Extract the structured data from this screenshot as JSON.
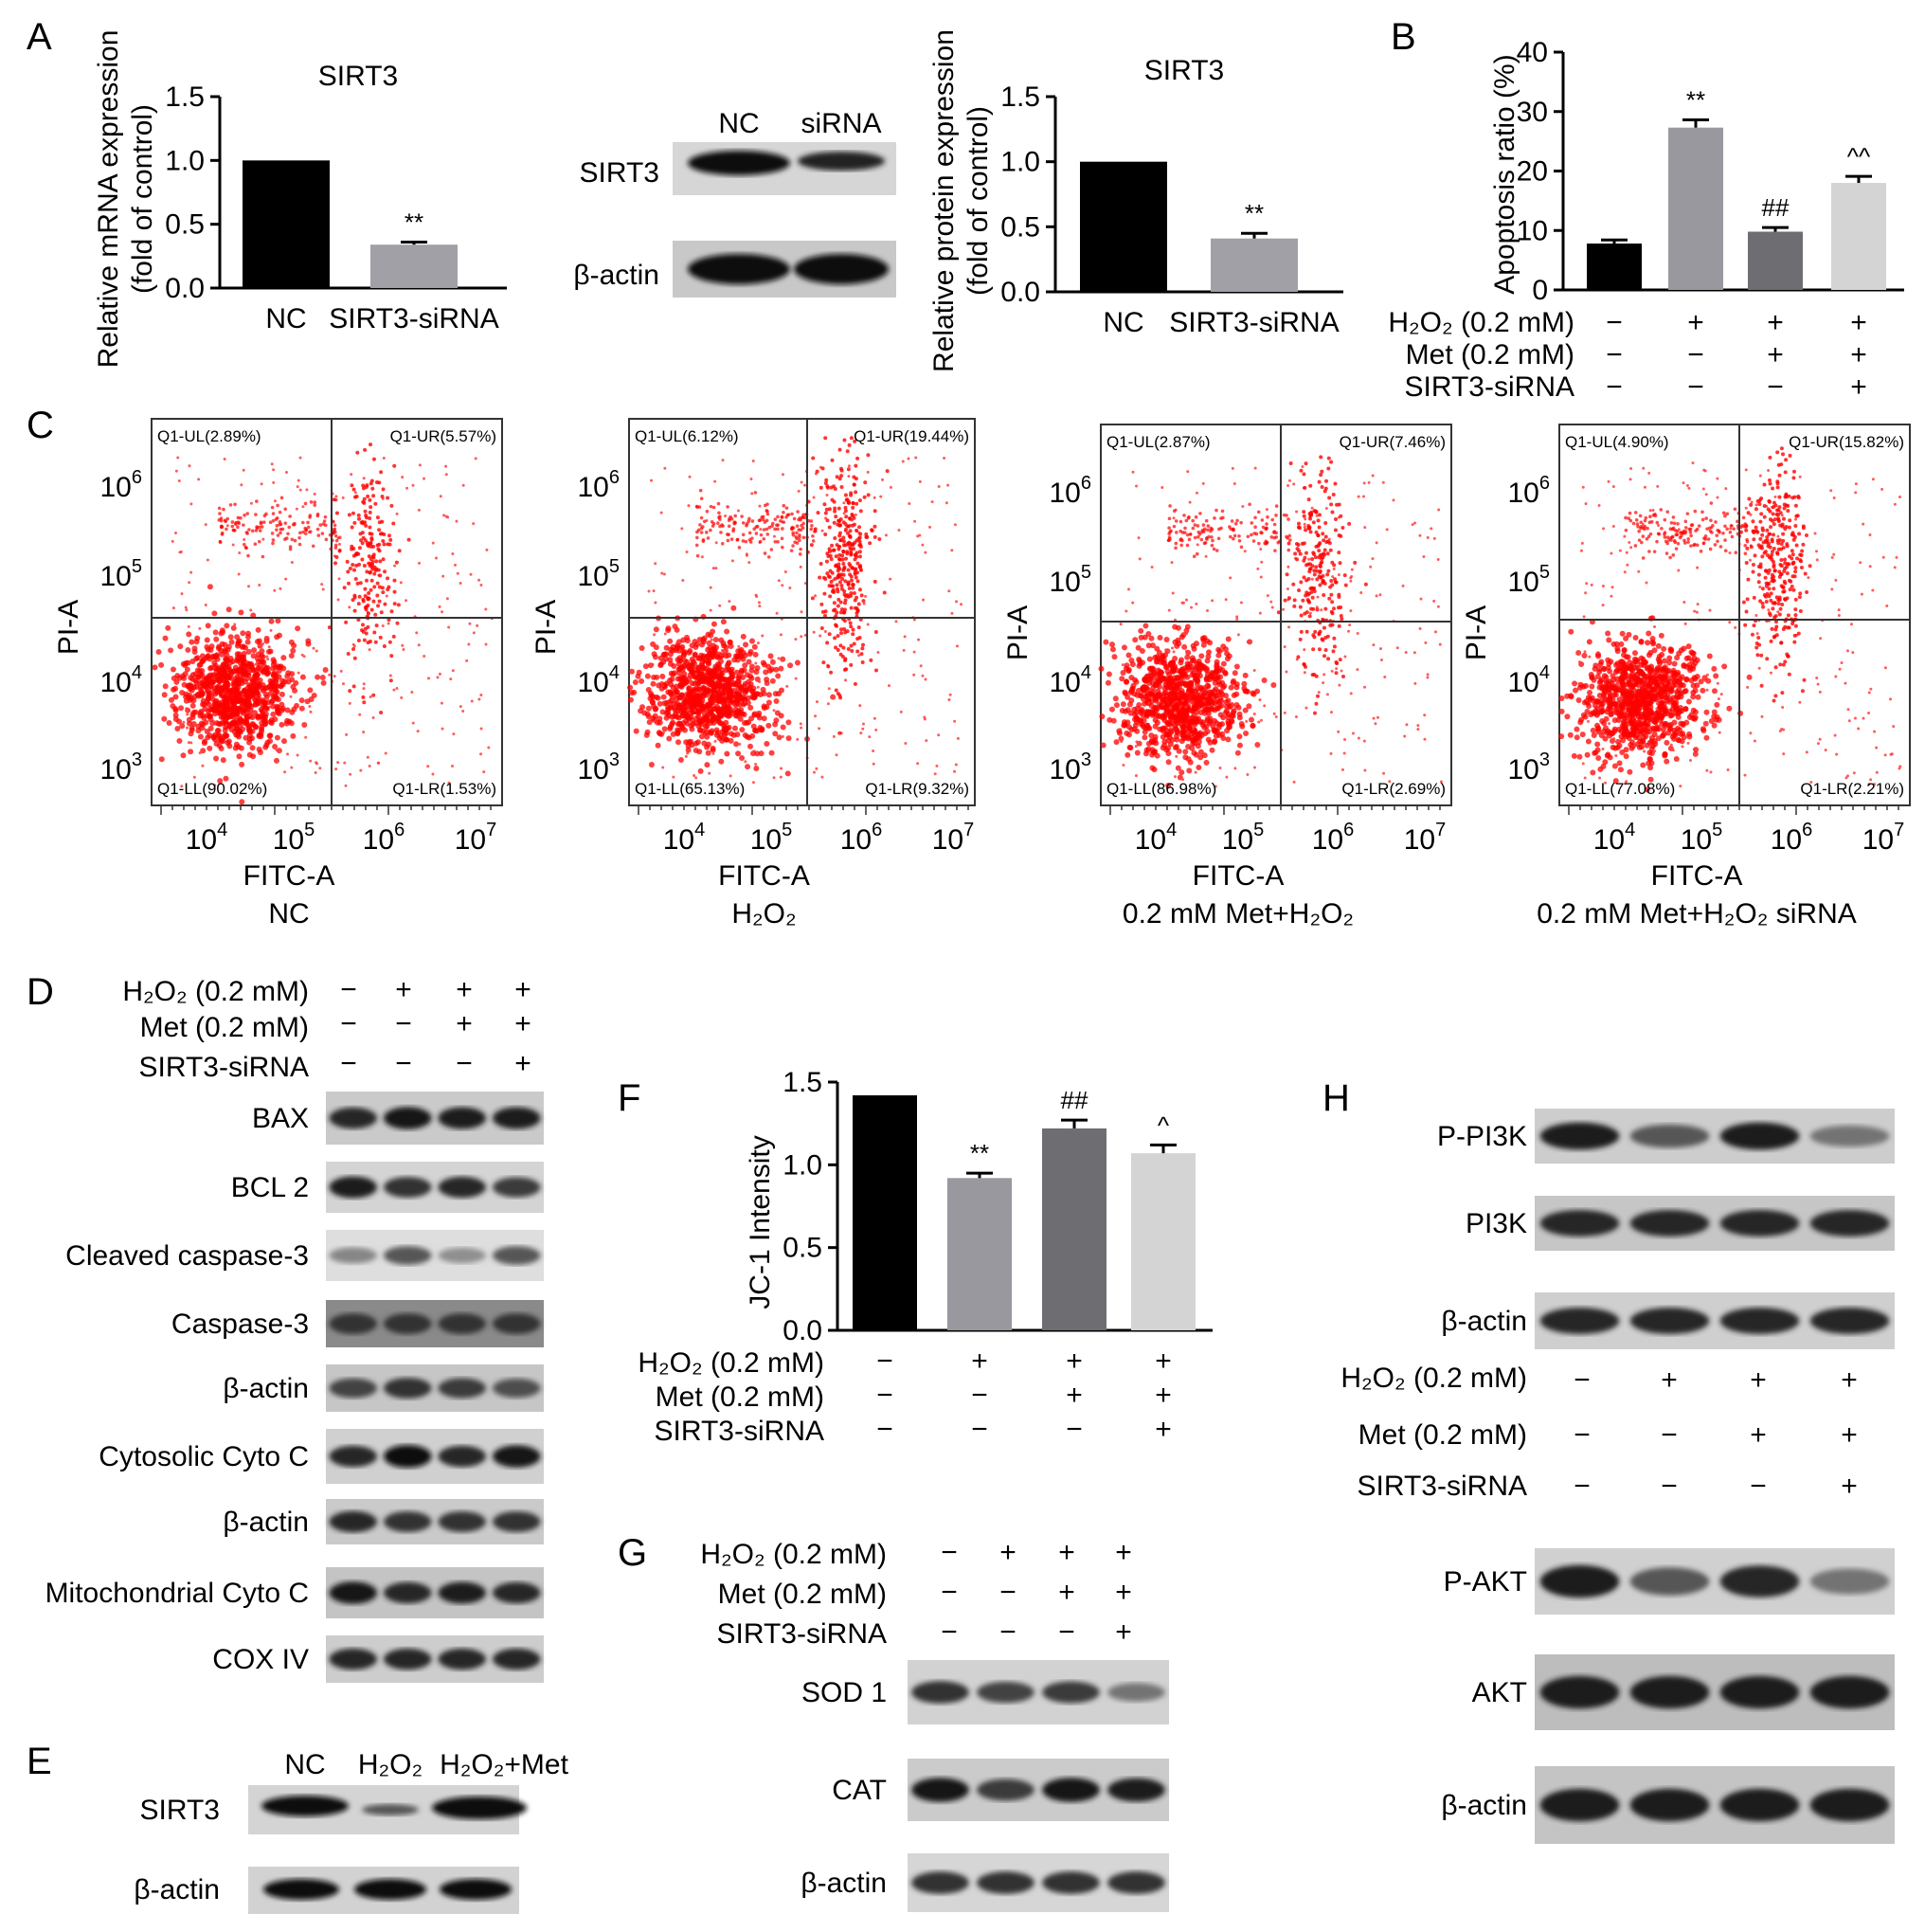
{
  "panel_letters": {
    "A": "A",
    "B": "B",
    "C": "C",
    "D": "D",
    "E": "E",
    "F": "F",
    "G": "G",
    "H": "H"
  },
  "tick_labels_major": [
    "0.0",
    "0.5",
    "1.0",
    "1.5"
  ],
  "tick_labels_b": [
    "0",
    "10",
    "20",
    "30",
    "40"
  ],
  "treat_rows": {
    "h2o2": "H₂O₂ (0.2 mM)",
    "met": "Met (0.2 mM)",
    "sirna": "SIRT3-siRNA"
  },
  "signs": {
    "h2o2": [
      "−",
      "+",
      "+",
      "+"
    ],
    "met": [
      "−",
      "−",
      "+",
      "+"
    ],
    "sirna": [
      "−",
      "−",
      "−",
      "+"
    ]
  },
  "chart_data": [
    {
      "id": "A-mrna",
      "type": "bar",
      "title": "SIRT3",
      "ylabel": "Relative mRNA expression\n(fold of control)",
      "categories": [
        "NC",
        "SIRT3-siRNA"
      ],
      "values": [
        1.0,
        0.34
      ],
      "errors": [
        0,
        0.02
      ],
      "sig": [
        "",
        "**"
      ],
      "ylim": [
        0,
        1.5
      ],
      "colors": [
        "#000000",
        "#a0a0a6"
      ]
    },
    {
      "id": "A-protein",
      "type": "bar",
      "title": "SIRT3",
      "ylabel": "Relative protein expression\n(fold of control)",
      "categories": [
        "NC",
        "SIRT3-siRNA"
      ],
      "values": [
        1.0,
        0.41
      ],
      "errors": [
        0,
        0.04
      ],
      "sig": [
        "",
        "**"
      ],
      "ylim": [
        0,
        1.5
      ],
      "colors": [
        "#000000",
        "#a0a0a6"
      ]
    },
    {
      "id": "B",
      "type": "bar",
      "title": "",
      "ylabel": "Apoptosis ratio (%)",
      "categories": [
        "1",
        "2",
        "3",
        "4"
      ],
      "values": [
        7.8,
        27.3,
        9.8,
        18.0
      ],
      "errors": [
        0.6,
        1.3,
        0.7,
        1.1
      ],
      "sig": [
        "",
        "**",
        "##",
        "^^"
      ],
      "ylim": [
        0,
        40
      ],
      "colors": [
        "#000000",
        "#98989e",
        "#6e6e72",
        "#d4d4d4"
      ]
    },
    {
      "id": "F",
      "type": "bar",
      "title": "",
      "ylabel": "JC-1 Intensity",
      "categories": [
        "1",
        "2",
        "3",
        "4"
      ],
      "values": [
        1.42,
        0.92,
        1.22,
        1.07
      ],
      "errors": [
        0,
        0.03,
        0.05,
        0.05
      ],
      "sig": [
        "",
        "**",
        "##",
        "^"
      ],
      "ylim": [
        0,
        1.5
      ],
      "colors": [
        "#000000",
        "#98989e",
        "#6e6e72",
        "#d4d4d4"
      ]
    }
  ],
  "blot_a": {
    "lanes": [
      "NC",
      "siRNA"
    ],
    "rows": [
      "SIRT3",
      "β-actin"
    ]
  },
  "flow": {
    "xlabel": "FITC-A",
    "ylabel": "PI-A",
    "plots": [
      {
        "UL": "Q1-UL(2.89%)",
        "UR": "Q1-UR(5.57%)",
        "LL": "Q1-LL(90.02%)",
        "LR": "Q1-LR(1.53%)",
        "caption": "NC"
      },
      {
        "UL": "Q1-UL(6.12%)",
        "UR": "Q1-UR(19.44%)",
        "LL": "Q1-LL(65.13%)",
        "LR": "Q1-LR(9.32%)",
        "caption": "H₂O₂"
      },
      {
        "UL": "Q1-UL(2.87%)",
        "UR": "Q1-UR(7.46%)",
        "LL": "Q1-LL(86.98%)",
        "LR": "Q1-LR(2.69%)",
        "caption": "0.2 mM Met+H₂O₂"
      },
      {
        "UL": "Q1-UL(4.90%)",
        "UR": "Q1-UR(15.82%)",
        "LL": "Q1-LL(77.08%)",
        "LR": "Q1-LR(2.21%)",
        "caption": "0.2 mM Met+H₂O₂ siRNA"
      }
    ]
  },
  "blot_d": [
    "BAX",
    "BCL 2",
    "Cleaved caspase-3",
    "Caspase-3",
    "β-actin",
    "Cytosolic Cyto C",
    "β-actin",
    "Mitochondrial Cyto C",
    "COX IV"
  ],
  "blot_e": {
    "lanes": [
      "NC",
      "H₂O₂",
      "H₂O₂+Met"
    ],
    "rows": [
      "SIRT3",
      "β-actin"
    ]
  },
  "blot_g": [
    "SOD 1",
    "CAT",
    "β-actin"
  ],
  "blot_h_top": [
    "P-PI3K",
    "PI3K",
    "β-actin"
  ],
  "blot_h_bottom": [
    "P-AKT",
    "AKT",
    "β-actin"
  ]
}
